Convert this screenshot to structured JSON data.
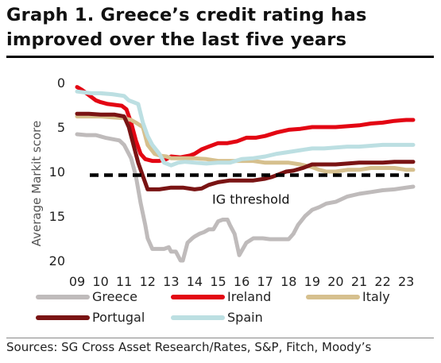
{
  "title": "Graph 1. Greece’s credit rating has improved over the last five years",
  "source": "Sources: SG Cross Asset Research/Rates, S&P, Fitch, Moody’s",
  "chart_data": {
    "type": "line",
    "ylabel": "Average Markit score",
    "ylim": [
      0,
      20
    ],
    "y_inverted": true,
    "yticks": [
      0,
      5,
      10,
      15,
      20
    ],
    "xlim": [
      9,
      23.4
    ],
    "xticks": [
      "09",
      "10",
      "11",
      "12",
      "13",
      "14",
      "15",
      "16",
      "17",
      "18",
      "19",
      "20",
      "21",
      "22",
      "23"
    ],
    "grid": false,
    "threshold": {
      "label": "IG threshold",
      "value": 10.4,
      "style": "dashed",
      "color": "#000000"
    },
    "legend_position": "bottom",
    "series": [
      {
        "name": "Greece",
        "color": "#bfbbbb",
        "x": [
          9.0,
          9.4,
          9.8,
          10.2,
          10.8,
          11.0,
          11.3,
          11.5,
          11.7,
          11.9,
          12.0,
          12.2,
          12.5,
          12.7,
          12.9,
          13.0,
          13.2,
          13.4,
          13.5,
          13.7,
          13.9,
          14.0,
          14.2,
          14.4,
          14.6,
          14.8,
          15.0,
          15.2,
          15.4,
          15.5,
          15.7,
          15.9,
          16.2,
          16.5,
          16.9,
          17.2,
          17.5,
          17.9,
          18.0,
          18.2,
          18.4,
          18.7,
          19.0,
          19.3,
          19.6,
          20.0,
          20.5,
          21.0,
          21.5,
          22.0,
          22.5,
          23.0,
          23.3
        ],
        "values": [
          5.8,
          5.9,
          5.9,
          6.2,
          6.5,
          7.0,
          8.5,
          10.5,
          13.5,
          16.0,
          17.5,
          18.7,
          18.7,
          18.7,
          18.5,
          19.0,
          19.0,
          20.0,
          20.0,
          18.0,
          17.5,
          17.3,
          17.0,
          16.8,
          16.5,
          16.5,
          15.6,
          15.4,
          15.4,
          16.0,
          17.0,
          19.4,
          18.0,
          17.5,
          17.5,
          17.6,
          17.6,
          17.6,
          17.6,
          17.0,
          16.0,
          15.0,
          14.3,
          14.0,
          13.6,
          13.4,
          12.8,
          12.5,
          12.3,
          12.1,
          12.0,
          11.8,
          11.7
        ]
      },
      {
        "name": "Ireland",
        "color": "#e30613",
        "x": [
          9.0,
          9.2,
          9.4,
          9.6,
          9.8,
          10.0,
          10.3,
          10.6,
          10.9,
          11.1,
          11.3,
          11.5,
          11.7,
          11.9,
          12.2,
          12.5,
          12.8,
          13.0,
          13.4,
          13.8,
          14.0,
          14.3,
          14.6,
          15.0,
          15.4,
          15.8,
          16.2,
          16.6,
          17.0,
          17.5,
          18.0,
          18.5,
          19.0,
          19.5,
          20.0,
          20.5,
          21.0,
          21.5,
          22.0,
          22.5,
          23.0,
          23.3
        ],
        "values": [
          0.5,
          0.8,
          1.2,
          1.6,
          2.0,
          2.2,
          2.4,
          2.5,
          2.6,
          3.0,
          4.5,
          6.5,
          8.0,
          8.6,
          8.8,
          8.8,
          8.6,
          8.3,
          8.4,
          8.2,
          8.0,
          7.5,
          7.2,
          6.8,
          6.8,
          6.6,
          6.2,
          6.2,
          6.0,
          5.6,
          5.3,
          5.2,
          5.0,
          5.0,
          5.0,
          4.9,
          4.8,
          4.6,
          4.5,
          4.3,
          4.2,
          4.2
        ]
      },
      {
        "name": "Italy",
        "color": "#d6c08e",
        "x": [
          9.0,
          9.5,
          10.0,
          10.5,
          11.0,
          11.3,
          11.5,
          11.8,
          12.0,
          12.3,
          12.5,
          12.8,
          13.0,
          13.3,
          13.5,
          14.0,
          14.5,
          15.0,
          15.5,
          16.0,
          16.5,
          17.0,
          17.5,
          18.0,
          18.5,
          19.0,
          19.3,
          19.6,
          20.0,
          20.5,
          21.0,
          21.5,
          22.0,
          22.5,
          23.0,
          23.3
        ],
        "values": [
          3.8,
          3.8,
          3.8,
          3.9,
          4.0,
          4.2,
          4.5,
          5.0,
          7.0,
          8.0,
          8.2,
          8.3,
          8.5,
          8.5,
          8.5,
          8.5,
          8.6,
          8.8,
          8.8,
          8.8,
          8.8,
          9.0,
          9.0,
          9.0,
          9.2,
          9.5,
          9.8,
          10.0,
          10.0,
          9.8,
          9.8,
          9.6,
          9.6,
          9.6,
          9.8,
          9.8
        ]
      },
      {
        "name": "Portugal",
        "color": "#7a1414",
        "x": [
          9.0,
          9.5,
          10.0,
          10.3,
          10.6,
          10.8,
          11.0,
          11.2,
          11.4,
          11.6,
          11.8,
          12.0,
          12.5,
          13.0,
          13.5,
          14.0,
          14.3,
          14.6,
          15.0,
          15.5,
          16.0,
          16.5,
          17.0,
          17.3,
          17.6,
          17.9,
          18.2,
          18.6,
          19.0,
          19.5,
          20.0,
          20.5,
          21.0,
          21.5,
          22.0,
          22.5,
          23.0,
          23.3
        ],
        "values": [
          3.5,
          3.5,
          3.6,
          3.6,
          3.6,
          3.7,
          3.8,
          5.0,
          7.0,
          9.0,
          10.5,
          12.0,
          12.0,
          11.8,
          11.8,
          12.0,
          11.9,
          11.5,
          11.2,
          11.0,
          11.0,
          11.0,
          10.8,
          10.6,
          10.3,
          10.0,
          9.9,
          9.6,
          9.2,
          9.2,
          9.2,
          9.1,
          9.0,
          9.0,
          9.0,
          8.9,
          8.9,
          8.9
        ]
      },
      {
        "name": "Spain",
        "color": "#bcdfe2",
        "x": [
          9.0,
          9.3,
          9.6,
          10.0,
          10.5,
          11.0,
          11.2,
          11.4,
          11.6,
          11.8,
          12.0,
          12.2,
          12.5,
          12.7,
          13.0,
          13.3,
          13.6,
          14.0,
          14.5,
          15.0,
          15.5,
          16.0,
          16.5,
          17.0,
          17.5,
          18.0,
          18.5,
          19.0,
          19.5,
          20.0,
          20.5,
          21.0,
          21.5,
          22.0,
          22.5,
          23.0,
          23.3
        ],
        "values": [
          1.0,
          1.1,
          1.2,
          1.2,
          1.3,
          1.5,
          2.0,
          2.2,
          2.4,
          4.5,
          6.0,
          7.0,
          8.0,
          9.0,
          9.3,
          9.0,
          8.9,
          9.0,
          9.1,
          9.0,
          9.0,
          8.6,
          8.5,
          8.3,
          8.0,
          7.8,
          7.6,
          7.4,
          7.4,
          7.3,
          7.2,
          7.2,
          7.1,
          7.0,
          7.0,
          7.0,
          7.0
        ]
      }
    ]
  }
}
